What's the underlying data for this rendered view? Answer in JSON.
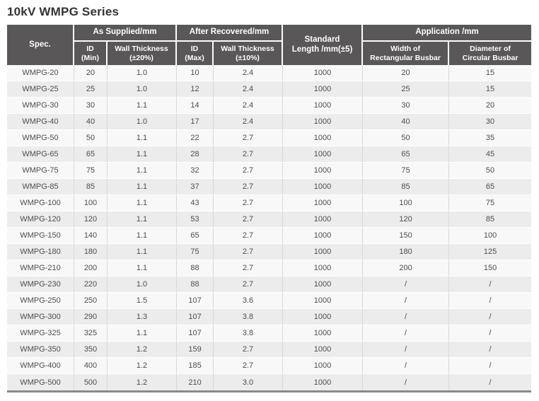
{
  "page_title": "10kV WMPG Series",
  "colors": {
    "header_bg": "#595757",
    "header_text": "#ffffff",
    "row_odd_bg": "#f8f8f8",
    "row_even_bg": "#ececec",
    "body_text": "#4d4d4d",
    "divider": "#d9d9d9",
    "bottom_border": "#8a8a8a"
  },
  "table": {
    "headers": {
      "spec": "Spec.",
      "as_supplied": "As Supplied/mm",
      "after_recovered": "After Recovered/mm",
      "standard_length": "Standard\nLength /mm(±5)",
      "application": "Application /mm",
      "id_min": "ID\n(Min)",
      "wall_thickness_20": "Wall Thickness\n(±20%)",
      "id_max": "ID\n(Max)",
      "wall_thickness_10": "Wall Thickness\n(±10%)",
      "width_rect_busbar": "Width of\nRectangular Busbar",
      "diameter_circ_busbar": "Diameter of\nCircular Busbar"
    },
    "columns": [
      "spec",
      "id_min",
      "wall_thickness_20",
      "id_max",
      "wall_thickness_10",
      "standard_length",
      "width_rect_busbar",
      "diameter_circ_busbar"
    ],
    "rows": [
      [
        "WMPG-20",
        "20",
        "1.0",
        "10",
        "2.4",
        "1000",
        "20",
        "15"
      ],
      [
        "WMPG-25",
        "25",
        "1.0",
        "12",
        "2.4",
        "1000",
        "25",
        "15"
      ],
      [
        "WMPG-30",
        "30",
        "1.1",
        "14",
        "2.4",
        "1000",
        "30",
        "20"
      ],
      [
        "WMPG-40",
        "40",
        "1.0",
        "17",
        "2.4",
        "1000",
        "40",
        "30"
      ],
      [
        "WMPG-50",
        "50",
        "1.1",
        "22",
        "2.7",
        "1000",
        "50",
        "35"
      ],
      [
        "WMPG-65",
        "65",
        "1.1",
        "28",
        "2.7",
        "1000",
        "65",
        "45"
      ],
      [
        "WMPG-75",
        "75",
        "1.1",
        "32",
        "2.7",
        "1000",
        "75",
        "50"
      ],
      [
        "WMPG-85",
        "85",
        "1.1",
        "37",
        "2.7",
        "1000",
        "85",
        "65"
      ],
      [
        "WMPG-100",
        "100",
        "1.1",
        "43",
        "2.7",
        "1000",
        "100",
        "75"
      ],
      [
        "WMPG-120",
        "120",
        "1.1",
        "53",
        "2.7",
        "1000",
        "120",
        "85"
      ],
      [
        "WMPG-150",
        "140",
        "1.1",
        "65",
        "2.7",
        "1000",
        "150",
        "100"
      ],
      [
        "WMPG-180",
        "180",
        "1.1",
        "75",
        "2.7",
        "1000",
        "180",
        "125"
      ],
      [
        "WMPG-210",
        "200",
        "1.1",
        "88",
        "2.7",
        "1000",
        "200",
        "150"
      ],
      [
        "WMPG-230",
        "220",
        "1.0",
        "88",
        "2.7",
        "1000",
        "/",
        "/"
      ],
      [
        "WMPG-250",
        "250",
        "1.5",
        "107",
        "3.6",
        "1000",
        "/",
        "/"
      ],
      [
        "WMPG-300",
        "290",
        "1.3",
        "107",
        "3.8",
        "1000",
        "/",
        "/"
      ],
      [
        "WMPG-325",
        "325",
        "1.1",
        "107",
        "3.8",
        "1000",
        "/",
        "/"
      ],
      [
        "WMPG-350",
        "350",
        "1.2",
        "159",
        "2.7",
        "1000",
        "/",
        "/"
      ],
      [
        "WMPG-400",
        "400",
        "1.2",
        "185",
        "2.7",
        "1000",
        "/",
        "/"
      ],
      [
        "WMPG-500",
        "500",
        "1.2",
        "210",
        "3.0",
        "1000",
        "/",
        "/"
      ]
    ]
  }
}
